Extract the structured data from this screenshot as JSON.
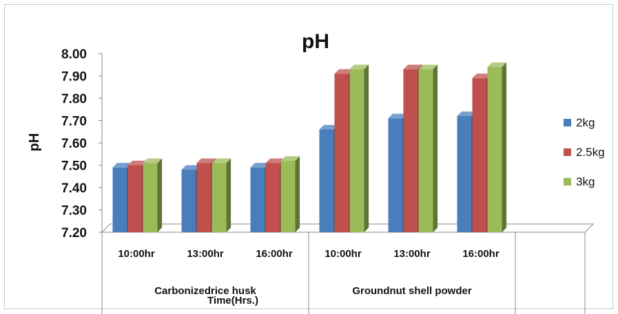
{
  "chart_data": {
    "type": "bar",
    "title": "pH",
    "ylabel": "pH",
    "xlabel": "Time(Hrs.)",
    "ylim": [
      7.2,
      8.0
    ],
    "yticks": [
      "7.20",
      "7.30",
      "7.40",
      "7.50",
      "7.60",
      "7.70",
      "7.80",
      "7.90",
      "8.00"
    ],
    "categories": [
      "10:00hr",
      "13:00hr",
      "16:00hr",
      "10:00hr",
      "13:00hr",
      "16:00hr"
    ],
    "groups": [
      {
        "label": "Carbonizedrice husk",
        "count": 3
      },
      {
        "label": "Groundnut shell powder",
        "count": 3
      }
    ],
    "series": [
      {
        "name": "2kg",
        "color": "#4a7ebb",
        "values": [
          7.49,
          7.48,
          7.49,
          7.66,
          7.71,
          7.72
        ]
      },
      {
        "name": "2.5kg",
        "color": "#c0504d",
        "values": [
          7.5,
          7.51,
          7.51,
          7.91,
          7.93,
          7.89
        ]
      },
      {
        "name": "3kg",
        "color": "#9bbb59",
        "values": [
          7.51,
          7.51,
          7.52,
          7.93,
          7.93,
          7.94
        ]
      }
    ],
    "legend_position": "right",
    "grid": false
  }
}
